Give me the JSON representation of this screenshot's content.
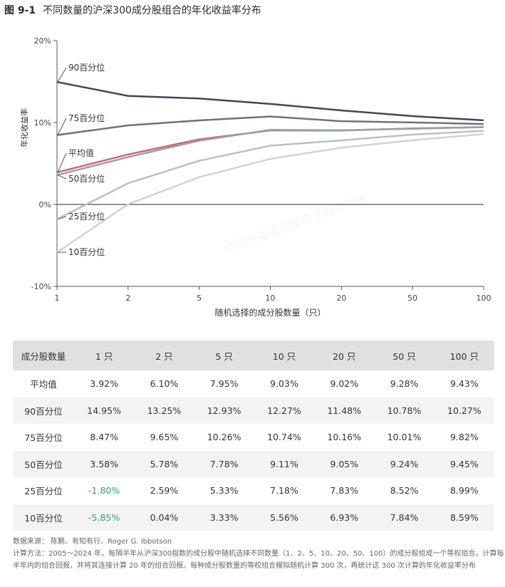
{
  "figure": {
    "number": "图 9-1",
    "title": "不同数量的沪深300成分股组合的年化收益率分布"
  },
  "chart_data": {
    "type": "line",
    "x": [
      "1",
      "2",
      "5",
      "10",
      "20",
      "50",
      "100"
    ],
    "xlabel": "随机选择的成分股数量（只）",
    "ylabel": "年化收益率",
    "ylim": [
      -10,
      20
    ],
    "yticks": [
      "20%",
      "10%",
      "0%",
      "-10%"
    ],
    "series": [
      {
        "name": "90百分位",
        "values": [
          14.95,
          13.25,
          12.93,
          12.27,
          11.48,
          10.78,
          10.27
        ],
        "color": "#414755"
      },
      {
        "name": "75百分位",
        "values": [
          8.47,
          9.65,
          10.26,
          10.74,
          10.16,
          10.01,
          9.82
        ],
        "color": "#6d7280"
      },
      {
        "name": "平均值",
        "values": [
          3.92,
          6.1,
          7.95,
          9.03,
          9.02,
          9.28,
          9.43
        ],
        "color": "#c76a6a"
      },
      {
        "name": "50百分位",
        "values": [
          3.58,
          5.78,
          7.78,
          9.11,
          9.05,
          9.24,
          9.45
        ],
        "color": "#9c9fa6"
      },
      {
        "name": "25百分位",
        "values": [
          -1.8,
          2.59,
          5.33,
          7.18,
          7.83,
          8.52,
          8.99
        ],
        "color": "#bbbec3"
      },
      {
        "name": "10百分位",
        "values": [
          -5.85,
          0.04,
          3.33,
          5.56,
          6.93,
          7.84,
          8.59
        ],
        "color": "#d0d2d6"
      }
    ]
  },
  "table": {
    "headers": [
      "成分股数量",
      "1 只",
      "2 只",
      "5 只",
      "10 只",
      "20 只",
      "50 只",
      "100 只"
    ],
    "rows": [
      [
        "平均值",
        "3.92%",
        "6.10%",
        "7.95%",
        "9.03%",
        "9.02%",
        "9.28%",
        "9.43%"
      ],
      [
        "90百分位",
        "14.95%",
        "13.25%",
        "12.93%",
        "12.27%",
        "11.48%",
        "10.78%",
        "10.27%"
      ],
      [
        "75百分位",
        "8.47%",
        "9.65%",
        "10.26%",
        "10.74%",
        "10.16%",
        "10.01%",
        "9.82%"
      ],
      [
        "50百分位",
        "3.58%",
        "5.78%",
        "7.78%",
        "9.11%",
        "9.05%",
        "9.24%",
        "9.45%"
      ],
      [
        "25百分位",
        "-1.80%",
        "2.59%",
        "5.33%",
        "7.18%",
        "7.83%",
        "8.52%",
        "8.99%"
      ],
      [
        "10百分位",
        "-5.85%",
        "0.04%",
        "3.33%",
        "5.56%",
        "6.93%",
        "7.84%",
        "8.59%"
      ]
    ]
  },
  "notes": {
    "source": "数据来源：  陈鹏、有知有行、Roger G. Ibbotson",
    "method": "计算方法：2005～2024 年，每隔半年从沪深300指数的成分股中随机选择不同数量（1、2、5、10、20、50、100）的成分股组成一个等权组合，计算每半年内的组合回报，并将其连接计算 20 年的组合回报。每种成分股数量的等权组合模拟随机计算 300 次，再统计这 300 次计算的年化收益率分布"
  },
  "watermark": "中国大类资产投资 2024 年报",
  "colors": {
    "negative": "#3b9a7b",
    "header_bg": "#dfe0e2",
    "row_alt_bg": "#f3f3f4"
  }
}
